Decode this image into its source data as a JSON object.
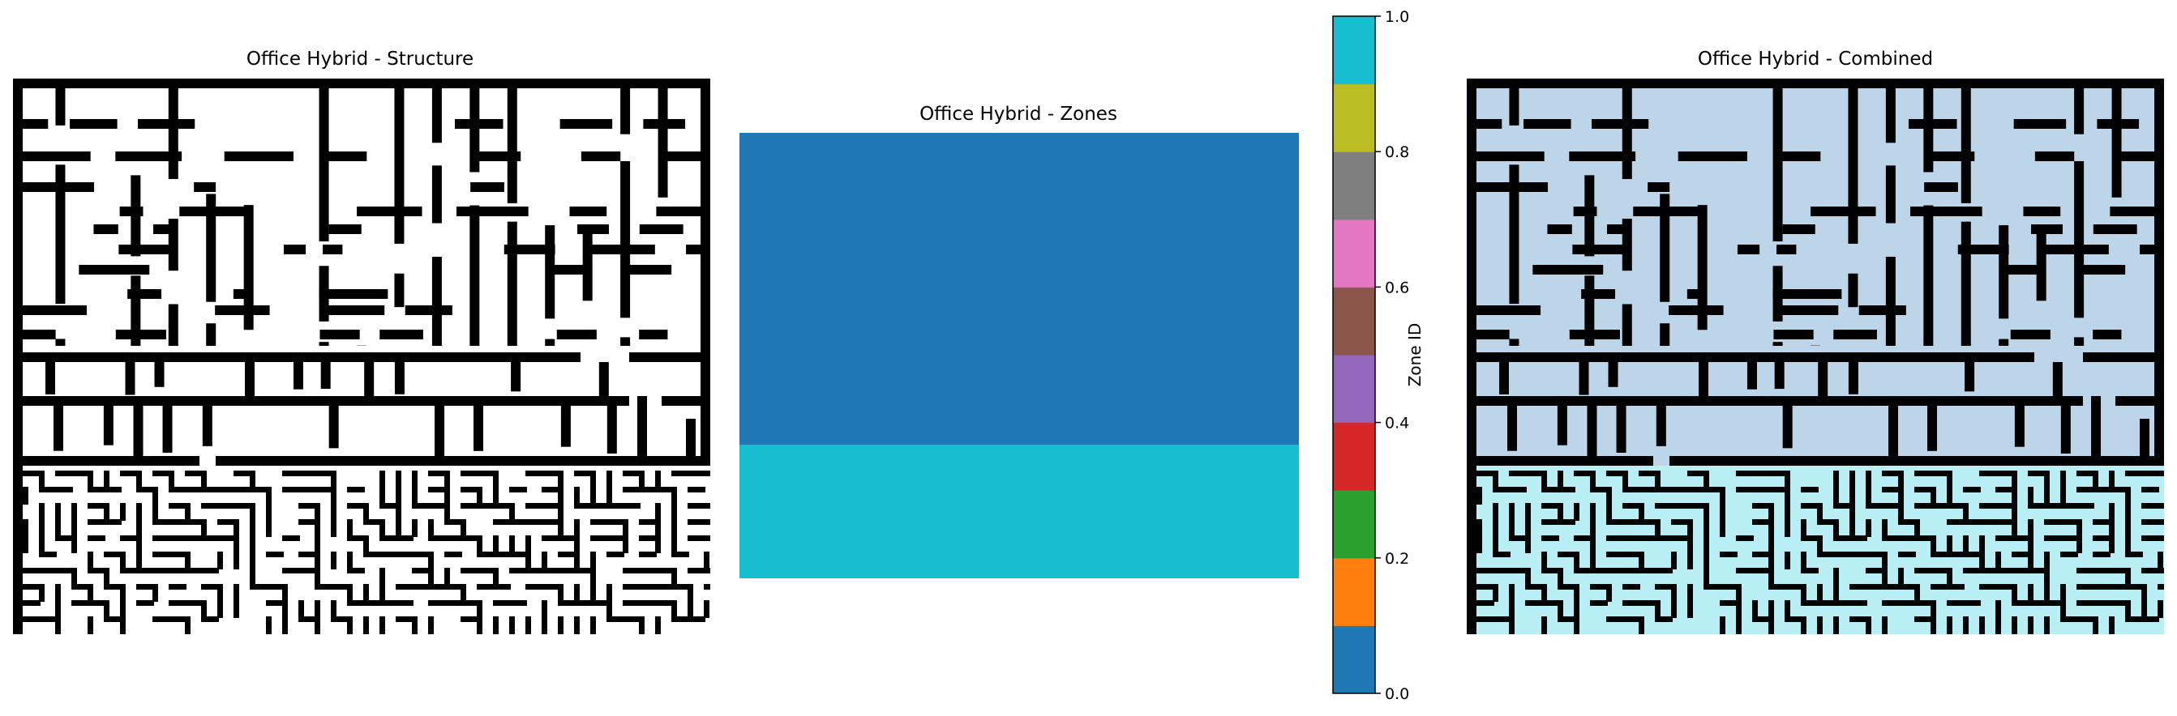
{
  "panels": {
    "structure_title": "Office Hybrid - Structure",
    "zones_title": "Office Hybrid - Zones",
    "combined_title": "Office Hybrid - Combined"
  },
  "colors": {
    "wall": "#000000",
    "floor": "#ffffff",
    "zone0": "#1f77b4",
    "zone1": "#17becf",
    "combined_zone0": "#bcd5e8",
    "combined_zone1": "#b9eff4"
  },
  "chart_data": [
    {
      "type": "heatmap",
      "title": "Office Hybrid - Structure",
      "values_description": "binary wall/floor grid",
      "regions": [
        "office upper region with sparse walls",
        "dense maze lower region"
      ]
    },
    {
      "type": "heatmap",
      "title": "Office Hybrid - Zones",
      "rows": [
        {
          "zone": 0,
          "fraction_of_height": 0.7
        },
        {
          "zone": 1,
          "fraction_of_height": 0.3
        }
      ],
      "colorbar": {
        "label": "Zone ID",
        "range": [
          0.0,
          1.0
        ],
        "ticks": [
          "0.0",
          "0.2",
          "0.4",
          "0.6",
          "0.8",
          "1.0"
        ],
        "cmap": [
          "#1f77b4",
          "#ff7f0e",
          "#2ca02c",
          "#d62728",
          "#9467bd",
          "#8c564b",
          "#e377c2",
          "#7f7f7f",
          "#bcbd22",
          "#17becf"
        ]
      }
    },
    {
      "type": "heatmap",
      "title": "Office Hybrid - Combined",
      "values_description": "structure overlaid on zones"
    }
  ]
}
